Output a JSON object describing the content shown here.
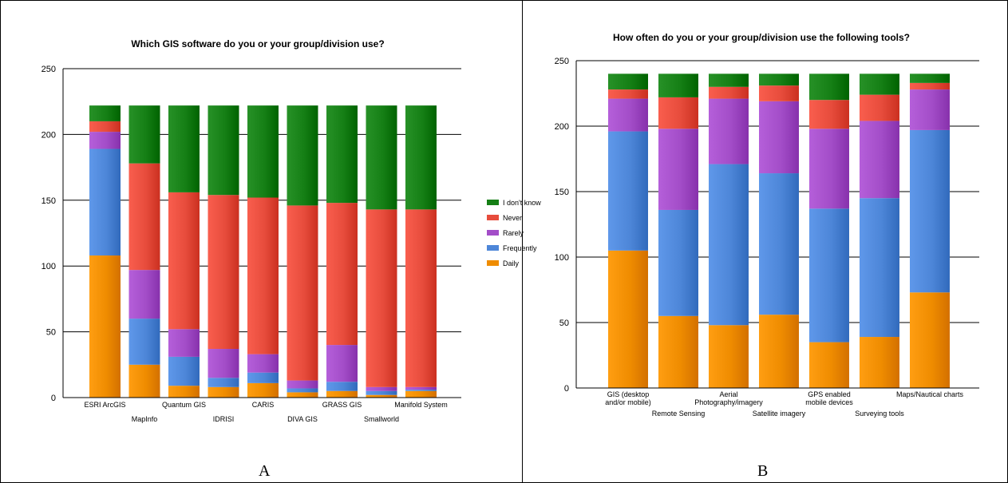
{
  "colors": {
    "daily": "#ef8c00",
    "frequently": "#4d86d8",
    "rarely": "#a34dc8",
    "never": "#e74c3c",
    "dont_know": "#157f15",
    "gridline": "#000000"
  },
  "panel_labels": [
    "A",
    "B"
  ],
  "chart_data": [
    {
      "type": "bar",
      "stacked": true,
      "title": "Which GIS software do you or your group/division use?",
      "xlabel": "",
      "ylabel": "",
      "ylim": [
        0,
        250
      ],
      "yticks": [
        0,
        50,
        100,
        150,
        200,
        250
      ],
      "grid": true,
      "legend_position": "right",
      "categories": [
        "ESRI ArcGIS",
        "MapInfo",
        "Quantum GIS",
        "IDRISI",
        "CARIS",
        "DIVA GIS",
        "GRASS GIS",
        "Smallworld",
        "Manifold System"
      ],
      "series": [
        {
          "name": "Daily",
          "color_key": "daily",
          "values": [
            108,
            25,
            9,
            8,
            11,
            4,
            5,
            2,
            5
          ]
        },
        {
          "name": "Frequently",
          "color_key": "frequently",
          "values": [
            81,
            35,
            22,
            7,
            8,
            3,
            7,
            3,
            1
          ]
        },
        {
          "name": "Rarely",
          "color_key": "rarely",
          "values": [
            13,
            37,
            21,
            22,
            14,
            6,
            28,
            3,
            2
          ]
        },
        {
          "name": "Never",
          "color_key": "never",
          "values": [
            8,
            81,
            104,
            117,
            119,
            133,
            108,
            135,
            135
          ]
        },
        {
          "name": "I don't know",
          "color_key": "dont_know",
          "values": [
            12,
            44,
            66,
            68,
            70,
            76,
            74,
            79,
            79
          ]
        }
      ],
      "legend": [
        "I don't know",
        "Never",
        "Rarely",
        "Frequently",
        "Daily"
      ]
    },
    {
      "type": "bar",
      "stacked": true,
      "title": "How often do you or your group/division use the following tools?",
      "xlabel": "",
      "ylabel": "",
      "ylim": [
        0,
        250
      ],
      "yticks": [
        0,
        50,
        100,
        150,
        200,
        250
      ],
      "grid": true,
      "legend_position": "none",
      "categories": [
        "GIS (desktop and/or mobile)",
        "Remote Sensing",
        "Aerial Photography/imagery",
        "Satellite imagery",
        "GPS enabled mobile devices",
        "Surveying tools",
        "Maps/Nautical charts"
      ],
      "category_lines": [
        [
          "GIS (desktop",
          "and/or mobile)"
        ],
        [
          "Remote Sensing"
        ],
        [
          "Aerial",
          "Photography/imagery"
        ],
        [
          "Satellite imagery"
        ],
        [
          "GPS enabled",
          "mobile devices"
        ],
        [
          "Surveying tools"
        ],
        [
          "Maps/Nautical charts"
        ]
      ],
      "series": [
        {
          "name": "Daily",
          "color_key": "daily",
          "values": [
            105,
            55,
            48,
            56,
            35,
            39,
            73
          ]
        },
        {
          "name": "Frequently",
          "color_key": "frequently",
          "values": [
            91,
            81,
            123,
            108,
            102,
            106,
            124
          ]
        },
        {
          "name": "Rarely",
          "color_key": "rarely",
          "values": [
            25,
            62,
            50,
            55,
            61,
            59,
            31
          ]
        },
        {
          "name": "Never",
          "color_key": "never",
          "values": [
            7,
            24,
            9,
            12,
            22,
            20,
            5
          ]
        },
        {
          "name": "I don't know",
          "color_key": "dont_know",
          "values": [
            12,
            18,
            10,
            9,
            20,
            16,
            7
          ]
        }
      ]
    }
  ]
}
